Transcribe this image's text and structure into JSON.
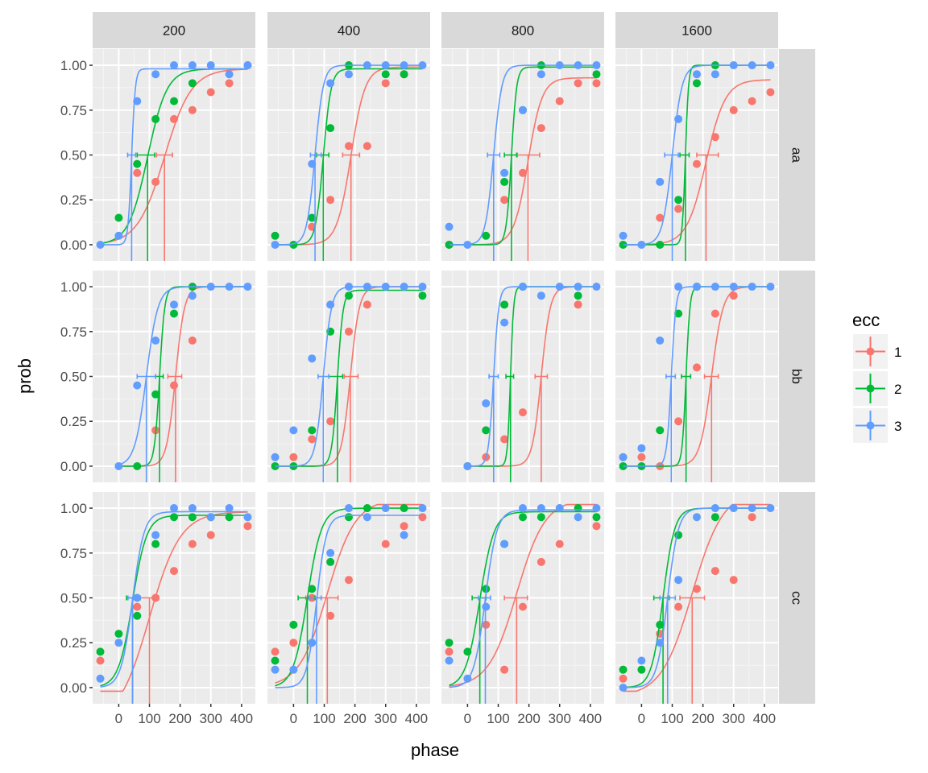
{
  "chart_data": {
    "type": "scatter",
    "facet_cols": [
      "200",
      "400",
      "800",
      "1600"
    ],
    "facet_rows": [
      "aa",
      "bb",
      "cc"
    ],
    "xlabel": "phase",
    "ylabel": "prob",
    "xlim": [
      -85,
      445
    ],
    "ylim": [
      -0.09,
      1.09
    ],
    "x_ticks": [
      0,
      100,
      200,
      300,
      400
    ],
    "x_tick_labels": [
      "0",
      "100",
      "200",
      "300",
      "400"
    ],
    "y_ticks": [
      0,
      0.25,
      0.5,
      0.75,
      1.0
    ],
    "y_tick_labels": [
      "0.00",
      "0.25",
      "0.50",
      "0.75",
      "1.00"
    ],
    "grid": true,
    "legend": {
      "title": "ecc",
      "position": "right",
      "entries": [
        {
          "label": "1",
          "color": "#F8766D"
        },
        {
          "label": "2",
          "color": "#00BA38"
        },
        {
          "label": "3",
          "color": "#619CFF"
        }
      ]
    },
    "x_values": [
      -60,
      0,
      60,
      120,
      180,
      240,
      300,
      360,
      420
    ],
    "panels": [
      {
        "row": "aa",
        "col": "200",
        "series": [
          {
            "ecc": "1",
            "points": [
              null,
              null,
              0.4,
              0.35,
              0.7,
              0.75,
              0.85,
              0.9,
              1.0
            ],
            "threshold": 149,
            "ci": [
              123,
              175
            ],
            "slope": 105,
            "lower": 0.0,
            "upper": 0.98,
            "fit_from": -60
          },
          {
            "ecc": "2",
            "points": [
              null,
              0.15,
              0.45,
              0.7,
              0.8,
              0.9,
              null,
              null,
              null
            ],
            "threshold": 94,
            "ci": [
              60,
              117
            ],
            "slope": 75,
            "lower": 0.0,
            "upper": 0.98,
            "fit_from": -60
          },
          {
            "ecc": "3",
            "points": [
              0.0,
              0.05,
              0.8,
              0.95,
              1.0,
              1.0,
              1.0,
              0.95,
              1.0
            ],
            "threshold": 42,
            "ci": [
              29,
              55
            ],
            "slope": 14,
            "lower": 0.0,
            "upper": 0.98,
            "fit_from": -60
          }
        ]
      },
      {
        "row": "aa",
        "col": "400",
        "series": [
          {
            "ecc": "1",
            "points": [
              null,
              null,
              0.1,
              0.25,
              0.55,
              0.55,
              0.9,
              0.95,
              null
            ],
            "threshold": 187,
            "ci": [
              160,
              215
            ],
            "slope": 55,
            "lower": 0.0,
            "upper": 0.99,
            "fit_from": -60
          },
          {
            "ecc": "2",
            "points": [
              0.05,
              0.0,
              0.15,
              0.65,
              1.0,
              null,
              0.95,
              0.95,
              null
            ],
            "threshold": 97,
            "ci": [
              75,
              115
            ],
            "slope": 30,
            "lower": 0.0,
            "upper": 0.98,
            "fit_from": -60
          },
          {
            "ecc": "3",
            "points": [
              0.0,
              null,
              0.45,
              0.9,
              0.95,
              1.0,
              1.0,
              1.0,
              1.0
            ],
            "threshold": 70,
            "ci": [
              55,
              90
            ],
            "slope": 32,
            "lower": 0.0,
            "upper": 1.0,
            "fit_from": -60
          }
        ]
      },
      {
        "row": "aa",
        "col": "800",
        "series": [
          {
            "ecc": "1",
            "points": [
              0.0,
              null,
              null,
              0.25,
              0.4,
              0.65,
              0.8,
              0.9,
              0.9
            ],
            "threshold": 197,
            "ci": [
              162,
              235
            ],
            "slope": 55,
            "lower": 0.0,
            "upper": 0.93,
            "fit_from": -60
          },
          {
            "ecc": "2",
            "points": [
              0.0,
              null,
              0.05,
              0.35,
              0.75,
              1.0,
              null,
              null,
              0.95
            ],
            "threshold": 143,
            "ci": [
              120,
              160
            ],
            "slope": 20,
            "lower": 0.0,
            "upper": 0.99,
            "fit_from": -60
          },
          {
            "ecc": "3",
            "points": [
              0.1,
              0.0,
              null,
              0.4,
              0.75,
              0.95,
              1.0,
              1.0,
              1.0
            ],
            "threshold": 85,
            "ci": [
              65,
              105
            ],
            "slope": 32,
            "lower": 0.0,
            "upper": 1.0,
            "fit_from": -60
          }
        ]
      },
      {
        "row": "aa",
        "col": "1600",
        "series": [
          {
            "ecc": "1",
            "points": [
              null,
              null,
              0.15,
              0.2,
              0.45,
              0.6,
              0.75,
              0.8,
              0.85
            ],
            "threshold": 210,
            "ci": [
              180,
              250
            ],
            "slope": 75,
            "lower": 0.0,
            "upper": 0.92,
            "fit_from": -60
          },
          {
            "ecc": "2",
            "points": [
              0.0,
              null,
              0.0,
              0.25,
              0.9,
              1.0,
              null,
              null,
              null
            ],
            "threshold": 143,
            "ci": [
              125,
              155
            ],
            "slope": 12,
            "lower": 0.0,
            "upper": 1.0,
            "fit_from": -60
          },
          {
            "ecc": "3",
            "points": [
              0.05,
              0.0,
              0.35,
              0.7,
              0.95,
              0.95,
              1.0,
              1.0,
              1.0
            ],
            "threshold": 100,
            "ci": [
              75,
              120
            ],
            "slope": 38,
            "lower": 0.0,
            "upper": 1.0,
            "fit_from": -60
          }
        ]
      },
      {
        "row": "bb",
        "col": "200",
        "series": [
          {
            "ecc": "1",
            "points": [
              null,
              null,
              null,
              0.2,
              0.45,
              0.7,
              null,
              null,
              null
            ],
            "threshold": 185,
            "ci": [
              160,
              205
            ],
            "slope": 35,
            "lower": 0.0,
            "upper": 1.0,
            "fit_from": 0
          },
          {
            "ecc": "2",
            "points": [
              null,
              null,
              0.0,
              0.4,
              0.85,
              1.0,
              null,
              null,
              null
            ],
            "threshold": 133,
            "ci": [
              120,
              145
            ],
            "slope": 20,
            "lower": 0.0,
            "upper": 1.0,
            "fit_from": 0
          },
          {
            "ecc": "3",
            "points": [
              null,
              0.0,
              0.45,
              0.7,
              0.9,
              0.95,
              1.0,
              1.0,
              1.0
            ],
            "threshold": 90,
            "ci": [
              60,
              120
            ],
            "slope": 45,
            "lower": 0.0,
            "upper": 1.0,
            "fit_from": 0
          }
        ]
      },
      {
        "row": "bb",
        "col": "400",
        "series": [
          {
            "ecc": "1",
            "points": [
              null,
              0.05,
              0.15,
              0.25,
              0.75,
              0.9,
              null,
              null,
              null
            ],
            "threshold": 185,
            "ci": [
              165,
              210
            ],
            "slope": 35,
            "lower": 0.0,
            "upper": 1.0,
            "fit_from": -60
          },
          {
            "ecc": "2",
            "points": [
              0.0,
              0.0,
              0.2,
              0.75,
              0.95,
              null,
              null,
              null,
              0.95
            ],
            "threshold": 143,
            "ci": [
              115,
              160
            ],
            "slope": 22,
            "lower": 0.0,
            "upper": 0.98,
            "fit_from": -60
          },
          {
            "ecc": "3",
            "points": [
              0.05,
              0.2,
              0.6,
              0.9,
              1.0,
              1.0,
              1.0,
              1.0,
              1.0
            ],
            "threshold": 97,
            "ci": [
              80,
              115
            ],
            "slope": 32,
            "lower": 0.0,
            "upper": 1.0,
            "fit_from": -60
          }
        ]
      },
      {
        "row": "bb",
        "col": "800",
        "series": [
          {
            "ecc": "1",
            "points": [
              null,
              null,
              0.05,
              0.15,
              0.3,
              null,
              null,
              0.9,
              null
            ],
            "threshold": 240,
            "ci": [
              220,
              260
            ],
            "slope": 35,
            "lower": 0.0,
            "upper": 1.0,
            "fit_from": 0
          },
          {
            "ecc": "2",
            "points": [
              null,
              0.0,
              0.2,
              0.9,
              1.0,
              null,
              null,
              0.95,
              null
            ],
            "threshold": 140,
            "ci": [
              125,
              150
            ],
            "slope": 12,
            "lower": 0.0,
            "upper": 1.0,
            "fit_from": 0
          },
          {
            "ecc": "3",
            "points": [
              null,
              0.0,
              0.35,
              0.8,
              1.0,
              0.95,
              1.0,
              1.0,
              1.0
            ],
            "threshold": 85,
            "ci": [
              70,
              100
            ],
            "slope": 20,
            "lower": 0.0,
            "upper": 1.0,
            "fit_from": 0
          }
        ]
      },
      {
        "row": "bb",
        "col": "1600",
        "series": [
          {
            "ecc": "1",
            "points": [
              0.05,
              0.05,
              0.0,
              0.25,
              0.55,
              0.85,
              0.95,
              null,
              null
            ],
            "threshold": 228,
            "ci": [
              205,
              250
            ],
            "slope": 45,
            "lower": 0.0,
            "upper": 1.0,
            "fit_from": -60
          },
          {
            "ecc": "2",
            "points": [
              0.0,
              0.0,
              0.2,
              0.85,
              1.0,
              null,
              null,
              null,
              null
            ],
            "threshold": 145,
            "ci": [
              130,
              160
            ],
            "slope": 15,
            "lower": 0.0,
            "upper": 1.0,
            "fit_from": -60
          },
          {
            "ecc": "3",
            "points": [
              0.05,
              0.1,
              0.7,
              1.0,
              1.0,
              1.0,
              1.0,
              1.0,
              1.0
            ],
            "threshold": 97,
            "ci": [
              80,
              110
            ],
            "slope": 18,
            "lower": 0.0,
            "upper": 1.0,
            "fit_from": -60
          }
        ]
      },
      {
        "row": "cc",
        "col": "200",
        "series": [
          {
            "ecc": "1",
            "points": [
              0.15,
              null,
              0.45,
              0.5,
              0.65,
              0.8,
              0.85,
              null,
              0.9
            ],
            "threshold": 100,
            "ci": [
              50,
              130
            ],
            "slope": 120,
            "lower": -0.2,
            "upper": 0.98,
            "fit_from": -60
          },
          {
            "ecc": "2",
            "points": [
              0.2,
              0.3,
              0.4,
              0.8,
              0.95,
              0.95,
              0.95,
              0.95,
              null
            ],
            "threshold": 45,
            "ci": [
              25,
              70
            ],
            "slope": 55,
            "lower": 0.0,
            "upper": 0.96,
            "fit_from": -60
          },
          {
            "ecc": "3",
            "points": [
              0.05,
              0.25,
              0.5,
              0.85,
              1.0,
              1.0,
              0.95,
              1.0,
              0.95
            ],
            "threshold": 45,
            "ci": [
              30,
              65
            ],
            "slope": 45,
            "lower": 0.0,
            "upper": 0.98,
            "fit_from": -60
          }
        ]
      },
      {
        "row": "cc",
        "col": "400",
        "series": [
          {
            "ecc": "1",
            "points": [
              0.2,
              0.25,
              0.5,
              0.4,
              0.6,
              null,
              0.8,
              0.9,
              0.95
            ],
            "threshold": 110,
            "ci": [
              40,
              145
            ],
            "slope": 110,
            "lower": 0.0,
            "upper": 1.05,
            "fit_from": -60
          },
          {
            "ecc": "2",
            "points": [
              0.15,
              0.35,
              0.55,
              0.7,
              0.95,
              1.0,
              null,
              1.0,
              null
            ],
            "threshold": 45,
            "ci": [
              15,
              70
            ],
            "slope": 55,
            "lower": 0.0,
            "upper": 1.0,
            "fit_from": -60
          },
          {
            "ecc": "3",
            "points": [
              0.1,
              0.1,
              0.25,
              0.75,
              1.0,
              0.95,
              1.0,
              0.85,
              1.0
            ],
            "threshold": 75,
            "ci": [
              50,
              90
            ],
            "slope": 38,
            "lower": 0.0,
            "upper": 0.96,
            "fit_from": -60
          }
        ]
      },
      {
        "row": "cc",
        "col": "800",
        "series": [
          {
            "ecc": "1",
            "points": [
              0.2,
              null,
              0.35,
              0.1,
              0.45,
              0.7,
              0.8,
              null,
              0.9
            ],
            "threshold": 160,
            "ci": [
              120,
              195
            ],
            "slope": 110,
            "lower": 0.0,
            "upper": 1.05,
            "fit_from": -60
          },
          {
            "ecc": "2",
            "points": [
              0.25,
              0.2,
              0.55,
              0.8,
              0.95,
              0.95,
              null,
              1.0,
              0.95
            ],
            "threshold": 40,
            "ci": [
              15,
              60
            ],
            "slope": 55,
            "lower": 0.0,
            "upper": 0.98,
            "fit_from": -60
          },
          {
            "ecc": "3",
            "points": [
              0.15,
              0.05,
              0.45,
              0.8,
              1.0,
              1.0,
              1.0,
              0.95,
              1.0
            ],
            "threshold": 58,
            "ci": [
              35,
              75
            ],
            "slope": 45,
            "lower": 0.0,
            "upper": 0.99,
            "fit_from": -60
          }
        ]
      },
      {
        "row": "cc",
        "col": "1600",
        "series": [
          {
            "ecc": "1",
            "points": [
              0.05,
              null,
              0.3,
              0.45,
              0.55,
              0.65,
              0.6,
              0.95,
              null
            ],
            "threshold": 165,
            "ci": [
              125,
              205
            ],
            "slope": 120,
            "lower": -0.05,
            "upper": 1.1,
            "fit_from": -60
          },
          {
            "ecc": "2",
            "points": [
              0.1,
              0.1,
              0.35,
              0.85,
              null,
              0.95,
              null,
              null,
              null
            ],
            "threshold": 70,
            "ci": [
              40,
              90
            ],
            "slope": 45,
            "lower": 0.0,
            "upper": 1.0,
            "fit_from": -60
          },
          {
            "ecc": "3",
            "points": [
              0.0,
              0.15,
              0.25,
              0.6,
              0.95,
              1.0,
              1.0,
              1.0,
              1.0
            ],
            "threshold": 85,
            "ci": [
              60,
              110
            ],
            "slope": 42,
            "lower": 0.0,
            "upper": 1.0,
            "fit_from": -60
          }
        ]
      }
    ]
  }
}
